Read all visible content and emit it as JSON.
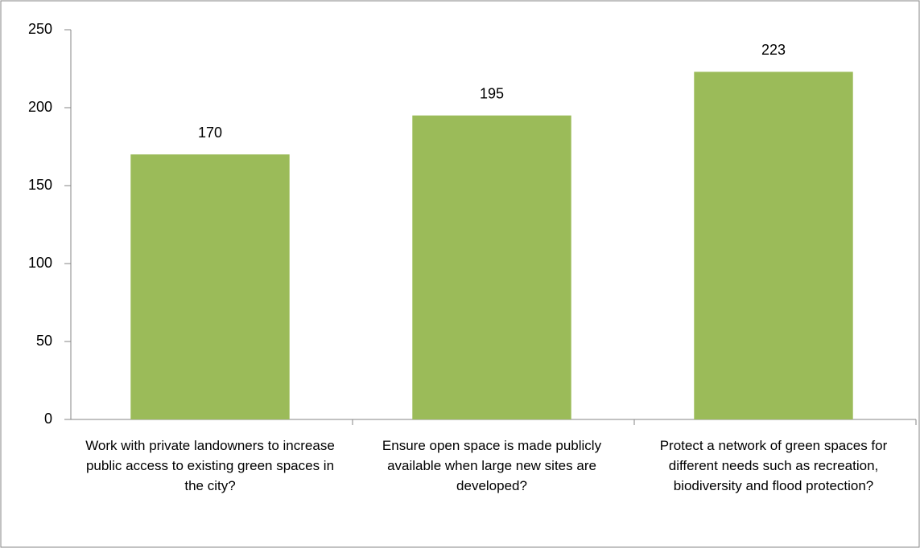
{
  "chart_data": {
    "type": "bar",
    "categories": [
      "Work with private landowners to increase public access to existing green spaces in the city?",
      "Ensure open space is made publicly available when large new sites are developed?",
      "Protect a network of green spaces for different needs such as recreation, biodiversity and flood protection?"
    ],
    "values": [
      170,
      195,
      223
    ],
    "color": "#9bbb59",
    "ylim": [
      0,
      250
    ],
    "yticks": [
      0,
      50,
      100,
      150,
      200,
      250
    ],
    "grid": false
  }
}
